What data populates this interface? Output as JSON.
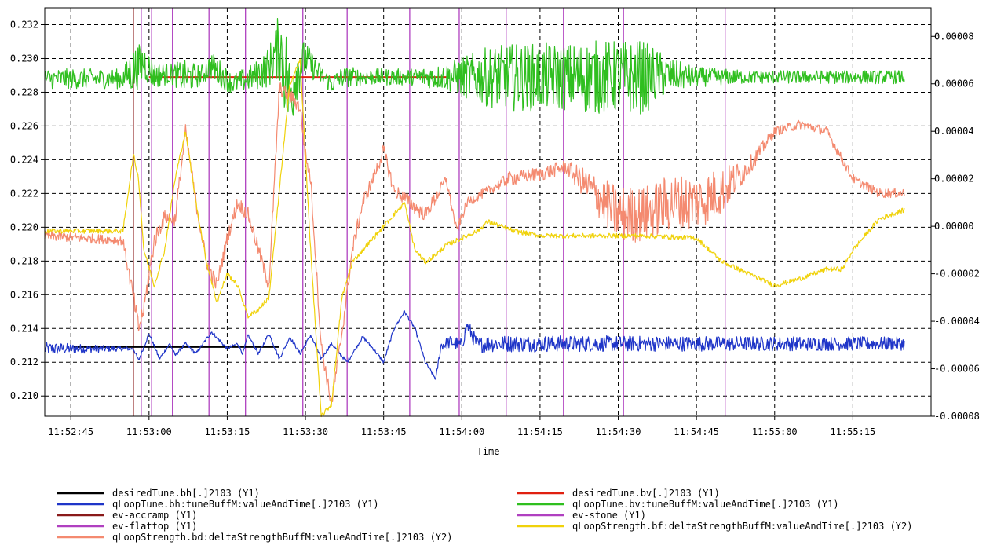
{
  "chart_data": {
    "type": "line",
    "title": "",
    "xlabel": "Time",
    "ylabel": "",
    "x_ticks": [
      "11:52:45",
      "11:53:00",
      "11:53:15",
      "11:53:30",
      "11:53:45",
      "11:54:00",
      "11:54:15",
      "11:54:30",
      "11:54:45",
      "11:55:00",
      "11:55:15"
    ],
    "x_range_seconds_after_11_52_45": [
      -5,
      165
    ],
    "y1_ticks": [
      "0.210",
      "0.212",
      "0.214",
      "0.216",
      "0.218",
      "0.220",
      "0.222",
      "0.224",
      "0.226",
      "0.228",
      "0.230",
      "0.232"
    ],
    "y1lim": [
      0.2088,
      0.233
    ],
    "y2_ticks": [
      "-0.00008",
      "-0.00006",
      "-0.00004",
      "-0.00002",
      "0.00000",
      "0.00002",
      "0.00004",
      "0.00006",
      "0.00008"
    ],
    "y2lim": [
      -8e-05,
      9.2e-05
    ],
    "grid": true,
    "legend_position": "bottom",
    "colors": {
      "black": "#000000",
      "blue": "#1f35c8",
      "red": "#e02010",
      "green": "#2fbf1f",
      "magenta": "#b040c0",
      "darkred": "#8a1a1a",
      "salmon": "#f48a70",
      "yellow": "#f0d20a"
    },
    "series": [
      {
        "name": "desiredTune.bh[.]2103 (Y1)",
        "axis": "y1",
        "color": "black",
        "x": [
          0.5,
          40
        ],
        "y": [
          0.2129,
          0.2129
        ]
      },
      {
        "name": "desiredTune.bv[.]2103 (Y1)",
        "axis": "y1",
        "color": "red",
        "x": [
          15,
          72
        ],
        "y": [
          0.2289,
          0.2289
        ]
      },
      {
        "name": "qLoopTune.bh:tuneBuffM:valueAndTime[.]2103 (Y1)",
        "axis": "y1",
        "color": "blue",
        "x": [
          -5,
          12,
          13,
          15,
          17,
          19,
          20,
          22,
          24,
          27,
          30,
          32,
          33,
          34,
          36,
          38,
          40,
          42,
          44,
          46,
          48,
          50,
          53,
          56,
          58,
          60,
          62,
          64,
          66,
          68,
          70,
          71,
          73,
          75,
          76,
          78,
          80,
          160
        ],
        "y": [
          0.2128,
          0.2128,
          0.2121,
          0.2137,
          0.2122,
          0.2131,
          0.2124,
          0.2131,
          0.2125,
          0.2138,
          0.2128,
          0.2131,
          0.2125,
          0.2136,
          0.2125,
          0.2137,
          0.2122,
          0.2135,
          0.2125,
          0.2136,
          0.2122,
          0.2131,
          0.212,
          0.2135,
          0.2128,
          0.212,
          0.214,
          0.215,
          0.214,
          0.212,
          0.211,
          0.213,
          0.2132,
          0.213,
          0.2142,
          0.213,
          0.2131,
          0.2131
        ],
        "noise": [
          0.0004,
          0.0001,
          0.0001,
          0.0001,
          0.0001,
          0.0001,
          0.0001,
          0.0001,
          0.0001,
          0.0001,
          0.0001,
          0.0001,
          0.0001,
          0.0001,
          0.0001,
          0.0001,
          0.0001,
          0.0001,
          0.0001,
          0.0001,
          0.0001,
          0.0001,
          0.0001,
          0.0001,
          0.0001,
          0.0001,
          0.0001,
          0.0001,
          0.0001,
          0.0001,
          0.0001,
          0.0003,
          0.0004,
          0.0004,
          0.0004,
          0.0005,
          0.0005,
          0.0004
        ]
      },
      {
        "name": "qLoopTune.bv:tuneBuffM:valueAndTime[.]2103 (Y1)",
        "axis": "y1",
        "color": "green",
        "x": [
          -5,
          10,
          12,
          14,
          16,
          19,
          22,
          25,
          27,
          29,
          31,
          35,
          38,
          40,
          41,
          42,
          43,
          45,
          48,
          50,
          52,
          54,
          56,
          60,
          65,
          72,
          75,
          80,
          85,
          95,
          100,
          110,
          115,
          120,
          130,
          140,
          150,
          160
        ],
        "y": [
          0.2288,
          0.2288,
          0.2293,
          0.2298,
          0.229,
          0.2291,
          0.2289,
          0.229,
          0.2296,
          0.229,
          0.2285,
          0.2289,
          0.2295,
          0.2308,
          0.2296,
          0.2275,
          0.2292,
          0.23,
          0.229,
          0.2285,
          0.2289,
          0.2289,
          0.2289,
          0.2289,
          0.2289,
          0.2289,
          0.2289,
          0.2289,
          0.2289,
          0.2289,
          0.2289,
          0.2289,
          0.229,
          0.2289,
          0.2289,
          0.2289,
          0.2289,
          0.2289
        ],
        "noise": [
          0.0006,
          0.0006,
          0.0014,
          0.0012,
          0.0008,
          0.0006,
          0.001,
          0.0006,
          0.0008,
          0.0008,
          0.0006,
          0.0008,
          0.0012,
          0.002,
          0.003,
          0.003,
          0.002,
          0.001,
          0.0006,
          0.0006,
          0.0006,
          0.0006,
          0.0005,
          0.0005,
          0.0005,
          0.0008,
          0.0012,
          0.0018,
          0.002,
          0.002,
          0.0022,
          0.0022,
          0.001,
          0.0006,
          0.0004,
          0.0004,
          0.0004,
          0.0004
        ]
      },
      {
        "name": "qLoopStrength.bd:deltaStrengthBuffM:valueAndTime[.]2103 (Y2)",
        "axis": "y2",
        "color": "salmon",
        "x": [
          -5,
          10,
          12,
          13,
          14,
          16,
          18,
          20,
          22,
          24,
          26,
          28,
          30,
          32,
          34,
          36,
          38,
          40,
          42,
          44,
          45,
          46,
          48,
          50,
          52,
          54,
          56,
          58,
          60,
          62,
          64,
          66,
          68,
          70,
          72,
          74,
          76,
          80,
          84,
          90,
          95,
          100,
          105,
          110,
          115,
          120,
          125,
          130,
          135,
          140,
          145,
          150,
          155,
          160
        ],
        "y": [
          -4e-06,
          -6e-06,
          -3e-05,
          -4.3e-05,
          -3.5e-05,
          -6e-06,
          4e-06,
          3e-06,
          4e-05,
          1e-05,
          -1.5e-05,
          -2.5e-05,
          -5e-06,
          1e-05,
          5e-06,
          -1e-05,
          -2.5e-05,
          5.8e-05,
          5.5e-05,
          5e-05,
          3e-05,
          2e-05,
          -5e-05,
          -7.5e-05,
          -4.5e-05,
          -1e-05,
          1e-05,
          2e-05,
          3.2e-05,
          1.5e-05,
          1.2e-05,
          8e-06,
          5e-06,
          1.2e-05,
          2e-05,
          -2e-06,
          1e-05,
          1.5e-05,
          2e-05,
          2.2e-05,
          2.5e-05,
          1.5e-05,
          5e-06,
          5e-06,
          1e-05,
          1e-05,
          1.5e-05,
          2.5e-05,
          4e-05,
          4.3e-05,
          4e-05,
          2e-05,
          1.4e-05,
          1.4e-05
        ],
        "noise": [
          2e-06,
          2e-06,
          4e-06,
          4e-06,
          4e-06,
          4e-06,
          3e-06,
          3e-06,
          3e-06,
          3e-06,
          3e-06,
          3e-06,
          3e-06,
          3e-06,
          3e-06,
          3e-06,
          3e-06,
          3e-06,
          3e-06,
          3e-06,
          3e-06,
          3e-06,
          3e-06,
          3e-06,
          3e-06,
          3e-06,
          3e-06,
          3e-06,
          3e-06,
          3e-06,
          3e-06,
          3e-06,
          3e-06,
          3e-06,
          2e-06,
          2e-06,
          2e-06,
          2e-06,
          3e-06,
          3e-06,
          3e-06,
          8e-06,
          1.2e-05,
          1.2e-05,
          1.2e-05,
          1.2e-05,
          1e-05,
          4e-06,
          2e-06,
          2e-06,
          2e-06,
          2e-06,
          2e-06,
          2e-06
        ]
      },
      {
        "name": "qLoopStrength.bf:deltaStrengthBuffM:valueAndTime[.]2103 (Y2)",
        "axis": "y2",
        "color": "yellow",
        "x": [
          -5,
          10,
          12,
          13,
          14,
          16,
          18,
          20,
          22,
          24,
          26,
          28,
          30,
          32,
          34,
          36,
          38,
          40,
          42,
          44,
          46,
          48,
          50,
          52,
          54,
          56,
          60,
          64,
          66,
          68,
          70,
          72,
          75,
          78,
          80,
          85,
          90,
          100,
          110,
          120,
          125,
          130,
          135,
          140,
          145,
          148,
          150,
          155,
          160
        ],
        "y": [
          -2e-06,
          -2e-06,
          3e-05,
          2e-05,
          -1e-05,
          -2.5e-05,
          -1e-05,
          2e-05,
          4e-05,
          1e-05,
          -1.5e-05,
          -3.2e-05,
          -2e-05,
          -2.5e-05,
          -3.8e-05,
          -3.5e-05,
          -3e-05,
          1.5e-05,
          6e-05,
          7e-05,
          -1e-05,
          -8e-05,
          -7.5e-05,
          -3e-05,
          -1.5e-05,
          -1e-05,
          0.0,
          1e-05,
          -1e-05,
          -1.5e-05,
          -1.2e-05,
          -8e-06,
          -5e-06,
          -2e-06,
          2e-06,
          -2e-06,
          -4e-06,
          -4e-06,
          -4e-06,
          -5e-06,
          -1.5e-05,
          -2e-05,
          -2.5e-05,
          -2.2e-05,
          -1.8e-05,
          -1.8e-05,
          -1e-05,
          3e-06,
          7e-06
        ],
        "noise": [
          1e-06,
          1e-06,
          1e-06,
          1e-06,
          1e-06,
          1e-06,
          1e-06,
          1e-06,
          1e-06,
          1e-06,
          1e-06,
          1e-06,
          1e-06,
          1e-06,
          1e-06,
          1e-06,
          1e-06,
          1e-06,
          1e-06,
          1e-06,
          1e-06,
          1e-06,
          1e-06,
          1e-06,
          1e-06,
          1e-06,
          1e-06,
          1e-06,
          1e-06,
          1e-06,
          1e-06,
          1e-06,
          1e-06,
          1e-06,
          1e-06,
          1e-06,
          1e-06,
          1e-06,
          1e-06,
          1e-06,
          1e-06,
          1e-06,
          1e-06,
          1e-06,
          1e-06,
          1e-06,
          1e-06,
          1e-06,
          1e-06
        ]
      },
      {
        "name": "ev-accramp (Y1)",
        "axis": "y1",
        "color": "darkred",
        "type": "events",
        "x": [
          12
        ]
      },
      {
        "name": "ev-flattop (Y1)",
        "axis": "y1",
        "color": "magenta",
        "type": "events",
        "x": []
      },
      {
        "name": "ev-stone (Y1)",
        "axis": "y1",
        "color": "magenta",
        "type": "events",
        "x": [
          13.5,
          15.5,
          19.5,
          26.5,
          33.5,
          44.5,
          53,
          65,
          74.5,
          83.5,
          94.5,
          106,
          125.5
        ]
      }
    ]
  },
  "legend": {
    "left": [
      {
        "label": "desiredTune.bh[.]2103 (Y1)",
        "color": "black"
      },
      {
        "label": "qLoopTune.bh:tuneBuffM:valueAndTime[.]2103 (Y1)",
        "color": "blue"
      },
      {
        "label": "ev-accramp (Y1)",
        "color": "darkred"
      },
      {
        "label": "ev-flattop (Y1)",
        "color": "magenta"
      },
      {
        "label": "qLoopStrength.bd:deltaStrengthBuffM:valueAndTime[.]2103 (Y2)",
        "color": "salmon"
      }
    ],
    "right": [
      {
        "label": "desiredTune.bv[.]2103 (Y1)",
        "color": "red"
      },
      {
        "label": "qLoopTune.bv:tuneBuffM:valueAndTime[.]2103 (Y1)",
        "color": "green"
      },
      {
        "label": "ev-stone (Y1)",
        "color": "magenta"
      },
      {
        "label": "qLoopStrength.bf:deltaStrengthBuffM:valueAndTime[.]2103 (Y2)",
        "color": "yellow"
      }
    ]
  }
}
